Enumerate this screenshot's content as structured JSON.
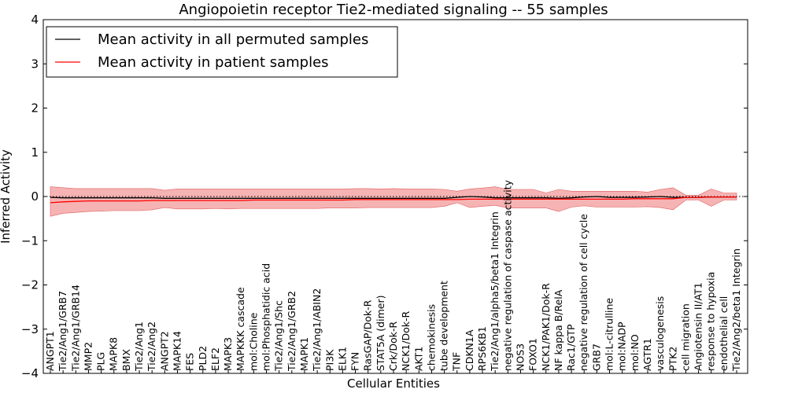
{
  "chart_data": {
    "type": "line",
    "title": "Angiopoietin receptor Tie2-mediated signaling -- 55 samples",
    "xlabel": "Cellular Entities",
    "ylabel": "Inferred Activity",
    "ylim": [
      -4,
      4
    ],
    "yticks": [
      -4,
      -3,
      -2,
      -1,
      0,
      1,
      2,
      3,
      4
    ],
    "ytick_labels": [
      "−4",
      "−3",
      "−2",
      "−1",
      "0",
      "1",
      "2",
      "3",
      "4"
    ],
    "grid": false,
    "legend_position": "top-left",
    "reference_line": 0,
    "categories": [
      "ANGPT1",
      "Tie2/Ang1/GRB7",
      "Tie2/Ang1/GRB14",
      "MMP2",
      "PLG",
      "MAPK8",
      "BMX",
      "Tie2/Ang1",
      "Tie2/Ang2",
      "ANGPT2",
      "MAPK14",
      "FES",
      "PLD2",
      "ELF2",
      "MAPK3",
      "MAPKKK cascade",
      "mol:Choline",
      "mol:Phosphatidic acid",
      "Tie2/Ang1/Shc",
      "Tie2/Ang1/GRB2",
      "MAPK1",
      "Tie2/Ang1/ABIN2",
      "PI3K",
      "ELK1",
      "FYN",
      "RasGAP/Dok-R",
      "STAT5A (dimer)",
      "Crk/Dok-R",
      "NCK1/Dok-R",
      "AKT1",
      "chemokinesis",
      "tube development",
      "TNF",
      "CDKN1A",
      "RPS6KB1",
      "Tie2/Ang1/alpha5/beta1 Integrin",
      "negative regulation of caspase activity",
      "NOS3",
      "FOXO1",
      "NCK1/PAK1/Dok-R",
      "NF kappa B/RelA",
      "Rac1/GTP",
      "negative regulation of cell cycle",
      "GRB7",
      "mol:L-citrulline",
      "mol:NADP",
      "mol:NO",
      "AGTR1",
      "vasculogenesis",
      "PTK2",
      "cell migration",
      "Angiotensin II/AT1",
      "response to hypoxia",
      "endothelial cell",
      "Tie2/Ang2/beta1 Integrin"
    ],
    "series": [
      {
        "name": "Mean activity in all permuted samples",
        "color": "#000000",
        "values": [
          -0.02,
          -0.03,
          -0.03,
          -0.03,
          -0.03,
          -0.03,
          -0.03,
          -0.03,
          -0.03,
          -0.04,
          -0.04,
          -0.04,
          -0.04,
          -0.04,
          -0.04,
          -0.04,
          -0.04,
          -0.04,
          -0.04,
          -0.04,
          -0.04,
          -0.04,
          -0.04,
          -0.04,
          -0.04,
          -0.04,
          -0.04,
          -0.04,
          -0.04,
          -0.04,
          -0.04,
          -0.04,
          -0.02,
          0.0,
          -0.01,
          -0.03,
          -0.03,
          -0.03,
          -0.03,
          -0.03,
          -0.04,
          -0.03,
          -0.01,
          0.0,
          -0.02,
          -0.02,
          -0.02,
          -0.01,
          0.0,
          -0.02,
          -0.02,
          -0.02,
          -0.01,
          -0.01,
          -0.01
        ]
      },
      {
        "name": "Mean activity in patient samples",
        "color": "#ff0000",
        "values": [
          -0.14,
          -0.12,
          -0.11,
          -0.1,
          -0.1,
          -0.1,
          -0.1,
          -0.1,
          -0.09,
          -0.09,
          -0.09,
          -0.09,
          -0.09,
          -0.09,
          -0.09,
          -0.09,
          -0.08,
          -0.08,
          -0.08,
          -0.08,
          -0.08,
          -0.08,
          -0.08,
          -0.08,
          -0.07,
          -0.07,
          -0.07,
          -0.07,
          -0.07,
          -0.07,
          -0.07,
          -0.07,
          -0.07,
          -0.06,
          -0.06,
          -0.06,
          -0.06,
          -0.06,
          -0.06,
          -0.06,
          -0.06,
          -0.06,
          -0.06,
          -0.06,
          -0.06,
          -0.06,
          -0.05,
          -0.05,
          -0.05,
          -0.05,
          -0.02,
          -0.02,
          -0.01,
          -0.01,
          -0.01
        ],
        "band_upper": [
          0.22,
          0.2,
          0.18,
          0.18,
          0.18,
          0.18,
          0.18,
          0.18,
          0.18,
          0.14,
          0.17,
          0.17,
          0.17,
          0.17,
          0.17,
          0.17,
          0.17,
          0.17,
          0.17,
          0.17,
          0.17,
          0.17,
          0.17,
          0.17,
          0.18,
          0.18,
          0.17,
          0.18,
          0.17,
          0.17,
          0.17,
          0.16,
          0.12,
          0.17,
          0.19,
          0.22,
          0.16,
          0.16,
          0.16,
          0.08,
          0.16,
          0.12,
          0.12,
          0.12,
          0.12,
          0.12,
          0.12,
          0.1,
          0.16,
          0.2,
          0.03,
          0.03,
          0.17,
          0.08,
          0.08
        ],
        "band_lower": [
          -0.45,
          -0.38,
          -0.36,
          -0.34,
          -0.33,
          -0.32,
          -0.32,
          -0.32,
          -0.3,
          -0.25,
          -0.28,
          -0.28,
          -0.28,
          -0.27,
          -0.28,
          -0.27,
          -0.27,
          -0.27,
          -0.27,
          -0.27,
          -0.27,
          -0.27,
          -0.26,
          -0.26,
          -0.26,
          -0.25,
          -0.25,
          -0.25,
          -0.25,
          -0.25,
          -0.25,
          -0.22,
          -0.14,
          -0.25,
          -0.22,
          -0.2,
          -0.26,
          -0.26,
          -0.26,
          -0.26,
          -0.34,
          -0.24,
          -0.21,
          -0.24,
          -0.24,
          -0.24,
          -0.24,
          -0.23,
          -0.25,
          -0.3,
          -0.08,
          -0.08,
          -0.22,
          -0.08,
          -0.08
        ]
      }
    ],
    "band_color": "#f08080"
  }
}
